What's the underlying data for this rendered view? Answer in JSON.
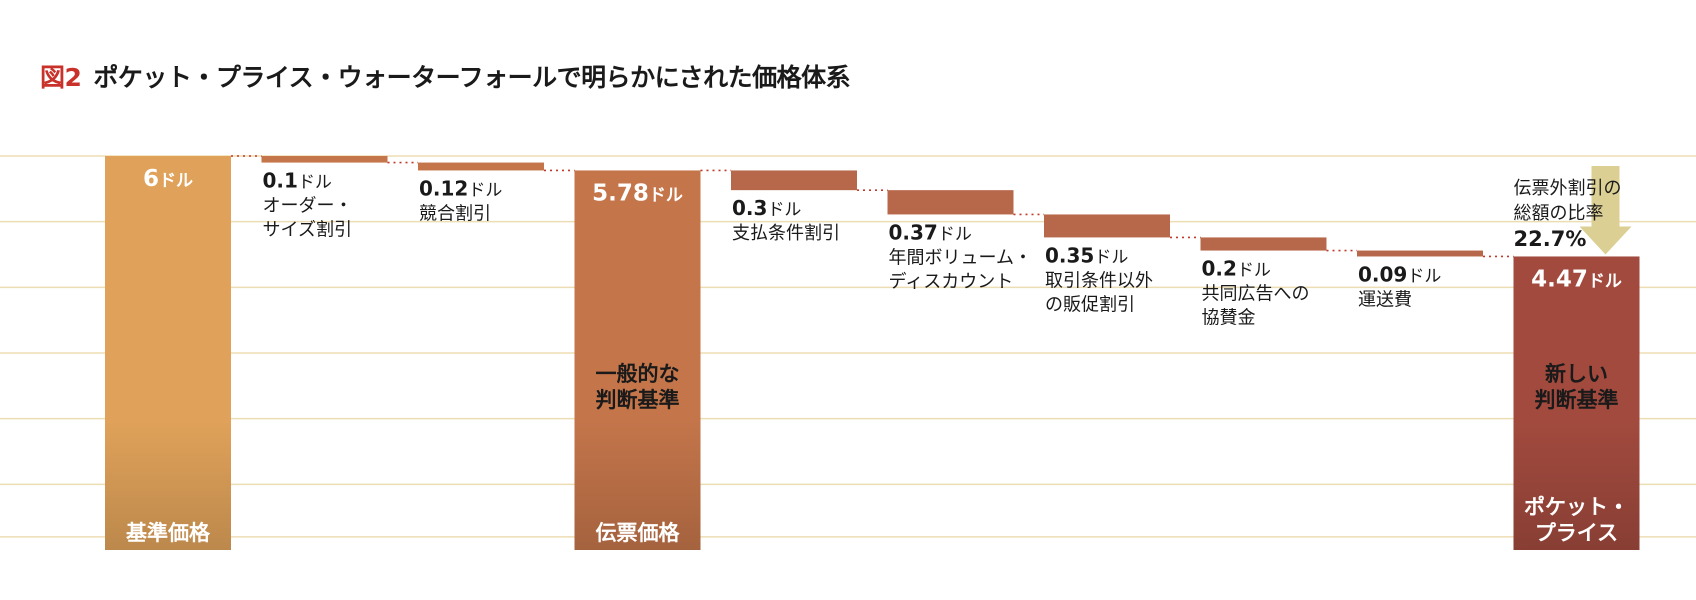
{
  "header": {
    "fig_label": "図2",
    "title": "ポケット・プライス・ウォーターフォールで明らかにされた価格体系"
  },
  "chart_data": {
    "type": "bar",
    "subtype": "waterfall",
    "unit": "ドル",
    "ylim": [
      0,
      6
    ],
    "grid": true,
    "legend": "none",
    "steps": [
      {
        "kind": "total",
        "value": 6,
        "value_text": "6",
        "label_lines": [
          "基準価格"
        ],
        "color": "#E0A25A"
      },
      {
        "kind": "decrease",
        "value": 0.1,
        "value_text": "0.1",
        "label_lines": [
          "オーダー・",
          "サイズ割引"
        ],
        "color": "#C4754A"
      },
      {
        "kind": "decrease",
        "value": 0.12,
        "value_text": "0.12",
        "label_lines": [
          "競合割引"
        ],
        "color": "#C4754A"
      },
      {
        "kind": "total",
        "value": 5.78,
        "value_text": "5.78",
        "label_lines": [
          "伝票価格"
        ],
        "inner_lines": [
          "一般的な",
          "判断基準"
        ],
        "color": "#C4754A"
      },
      {
        "kind": "decrease",
        "value": 0.3,
        "value_text": "0.3",
        "label_lines": [
          "支払条件割引"
        ],
        "color": "#B8684A"
      },
      {
        "kind": "decrease",
        "value": 0.37,
        "value_text": "0.37",
        "label_lines": [
          "年間ボリューム・",
          "ディスカウント"
        ],
        "color": "#B8684A"
      },
      {
        "kind": "decrease",
        "value": 0.35,
        "value_text": "0.35",
        "label_lines": [
          "取引条件以外",
          "の販促割引"
        ],
        "color": "#B8684A"
      },
      {
        "kind": "decrease",
        "value": 0.2,
        "value_text": "0.2",
        "label_lines": [
          "共同広告への",
          "協賛金"
        ],
        "color": "#B8684A"
      },
      {
        "kind": "decrease",
        "value": 0.09,
        "value_text": "0.09",
        "label_lines": [
          "運送費"
        ],
        "color": "#B8684A"
      },
      {
        "kind": "total",
        "value": 4.47,
        "value_text": "4.47",
        "label_lines": [
          "ポケット・",
          "プライス"
        ],
        "inner_lines": [
          "新しい",
          "判断基準"
        ],
        "color": "#A24A3E"
      }
    ],
    "annotation": {
      "lines": [
        "伝票外割引の",
        "総額の比率"
      ],
      "value": "22.7%"
    }
  },
  "colors": {
    "accent_red": "#C8322A",
    "grid": "#EDDDB4",
    "connector": "#C0392B",
    "arrow": "#DCCF94",
    "text": "#1A1A1A"
  }
}
